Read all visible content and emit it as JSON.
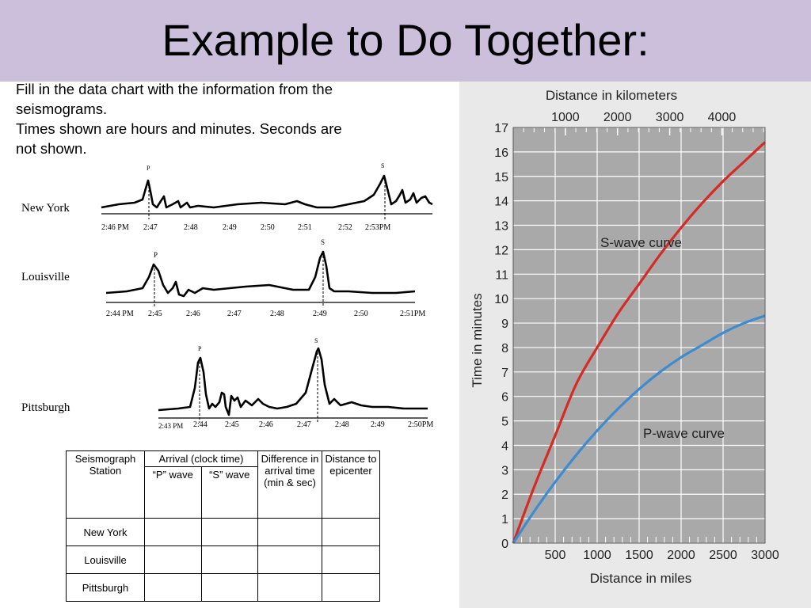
{
  "slide": {
    "title": "Example to Do Together:"
  },
  "instructions": {
    "line1": "Fill in the data chart with the information from the",
    "line2": "seismograms.",
    "line3": "Times shown are hours and minutes.  Seconds are",
    "line4": "not shown."
  },
  "seismograms": [
    {
      "station": "New York",
      "start_label": "2:46 PM",
      "ticks": [
        "2:47",
        "2:48",
        "2:49",
        "2:50",
        "2:51",
        "2:52",
        "2:53PM"
      ],
      "p_marker": "P",
      "s_marker": "S"
    },
    {
      "station": "Louisville",
      "start_label": "2:44 PM",
      "ticks": [
        "2:45",
        "2:46",
        "2:47",
        "2:48",
        "2:49",
        "2:50",
        "2:51PM"
      ],
      "p_marker": "P",
      "s_marker": "S"
    },
    {
      "station": "Pittsburgh",
      "start_label": "2:43 PM",
      "ticks": [
        "2:44",
        "2:45",
        "2:46",
        "2:47",
        "2:48",
        "2:49",
        "2:50PM"
      ],
      "p_marker": "P",
      "s_marker": "S"
    }
  ],
  "table": {
    "headers": {
      "station": "Seismograph Station",
      "arrival": "Arrival (clock time)",
      "p_wave": "“P” wave",
      "s_wave": "“S” wave",
      "difference": "Difference in arrival time (min & sec)",
      "distance": "Distance to epicenter"
    },
    "rows": [
      {
        "station": "New York",
        "p": "",
        "s": "",
        "diff": "",
        "dist": ""
      },
      {
        "station": "Louisville",
        "p": "",
        "s": "",
        "diff": "",
        "dist": ""
      },
      {
        "station": "Pittsburgh",
        "p": "",
        "s": "",
        "diff": "",
        "dist": ""
      }
    ]
  },
  "chart_data": {
    "type": "line",
    "title": "",
    "xlabel": "Distance in miles",
    "x2label": "Distance in kilometers",
    "ylabel": "Time in minutes",
    "xlim": [
      0,
      3000
    ],
    "ylim": [
      0,
      17
    ],
    "x_ticks": [
      "500",
      "1000",
      "1500",
      "2000",
      "2500",
      "3000"
    ],
    "x2_ticks": [
      "1000",
      "2000",
      "3000",
      "4000"
    ],
    "y_ticks": [
      "0",
      "1",
      "2",
      "3",
      "4",
      "5",
      "6",
      "7",
      "8",
      "9",
      "10",
      "11",
      "12",
      "13",
      "14",
      "15",
      "16",
      "17"
    ],
    "grid": true,
    "series": [
      {
        "name": "S-wave curve",
        "color": "#d62b24",
        "x": [
          0,
          250,
          500,
          750,
          1000,
          1250,
          1500,
          1750,
          2000,
          2250,
          2500,
          2750,
          3000
        ],
        "y": [
          0,
          2.3,
          4.4,
          6.5,
          8.0,
          9.4,
          10.6,
          11.8,
          12.9,
          13.9,
          14.8,
          15.6,
          16.4
        ]
      },
      {
        "name": "P-wave curve",
        "color": "#3d8bd0",
        "x": [
          0,
          250,
          500,
          750,
          1000,
          1250,
          1500,
          1750,
          2000,
          2250,
          2500,
          2750,
          3000
        ],
        "y": [
          0,
          1.3,
          2.5,
          3.6,
          4.6,
          5.5,
          6.3,
          7.0,
          7.6,
          8.1,
          8.6,
          9.0,
          9.3
        ]
      }
    ],
    "annotations": [
      "S-wave curve",
      "P-wave curve"
    ]
  }
}
